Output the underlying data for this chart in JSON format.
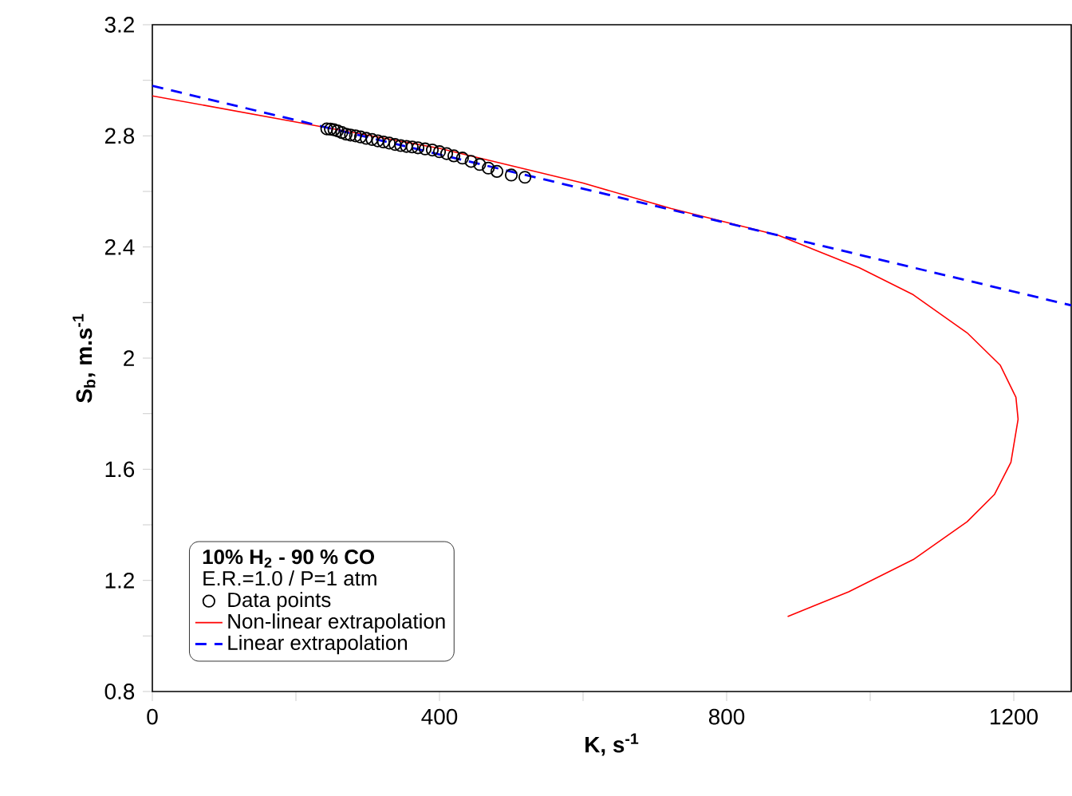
{
  "chart_data": {
    "type": "line",
    "xlabel": "K, s$^{-1}$",
    "ylabel": "S$_{b}$, m.s$^{-1}$",
    "legend_title": "10% H$_{2}$ - 90 % CO",
    "annotations": [
      "E.R.=1.0 / P=1 atm"
    ],
    "xlim": [
      0,
      1280
    ],
    "ylim": [
      0.8,
      3.2
    ],
    "xticks": [
      0,
      {
        "value": 200,
        "label": null
      },
      400,
      {
        "value": 600,
        "label": null
      },
      800,
      {
        "value": 1000,
        "label": null
      },
      1200
    ],
    "yticks": [
      0.8,
      {
        "value": 1.0,
        "label": null
      },
      1.2,
      {
        "value": 1.4,
        "label": null
      },
      1.6,
      {
        "value": 1.8,
        "label": null
      },
      2,
      {
        "value": 2.2,
        "label": null
      },
      2.4,
      {
        "value": 2.6,
        "label": null
      },
      2.8,
      {
        "value": 3.0,
        "label": null
      },
      3.2
    ],
    "legend": "bottom left",
    "grid": false,
    "series": [
      {
        "name": "Data points",
        "type": "scatter",
        "marker": "circle",
        "color": "#000000",
        "x": [
          243,
          248,
          253,
          258,
          264,
          270,
          276,
          283,
          290,
          298,
          306,
          314,
          322,
          330,
          338,
          346,
          354,
          362,
          370,
          380,
          390,
          400,
          410,
          420,
          432,
          444,
          456,
          468,
          480,
          500,
          519
        ],
        "values": [
          2.825,
          2.824,
          2.822,
          2.818,
          2.812,
          2.806,
          2.803,
          2.8,
          2.796,
          2.791,
          2.787,
          2.782,
          2.778,
          2.774,
          2.769,
          2.765,
          2.762,
          2.76,
          2.757,
          2.753,
          2.749,
          2.743,
          2.736,
          2.728,
          2.72,
          2.708,
          2.697,
          2.684,
          2.672,
          2.659,
          2.651
        ]
      },
      {
        "name": "Non-linear extrapolation",
        "marker": "none",
        "line_style": "solid",
        "color": "#ff0000",
        "x": [
          0,
          200,
          400,
          600,
          722,
          872,
          985,
          1060,
          1135,
          1181,
          1203,
          1206,
          1196,
          1173,
          1135,
          1060,
          970,
          885
        ],
        "values": [
          2.944,
          2.85,
          2.755,
          2.63,
          2.539,
          2.442,
          2.325,
          2.228,
          2.091,
          1.975,
          1.859,
          1.78,
          1.625,
          1.509,
          1.411,
          1.275,
          1.159,
          1.07
        ]
      },
      {
        "name": "Linear extrapolation",
        "marker": "none",
        "line_style": "dashed",
        "color": "#0000ff",
        "x": [
          0,
          1280
        ],
        "values": [
          2.98,
          2.19
        ]
      }
    ]
  }
}
